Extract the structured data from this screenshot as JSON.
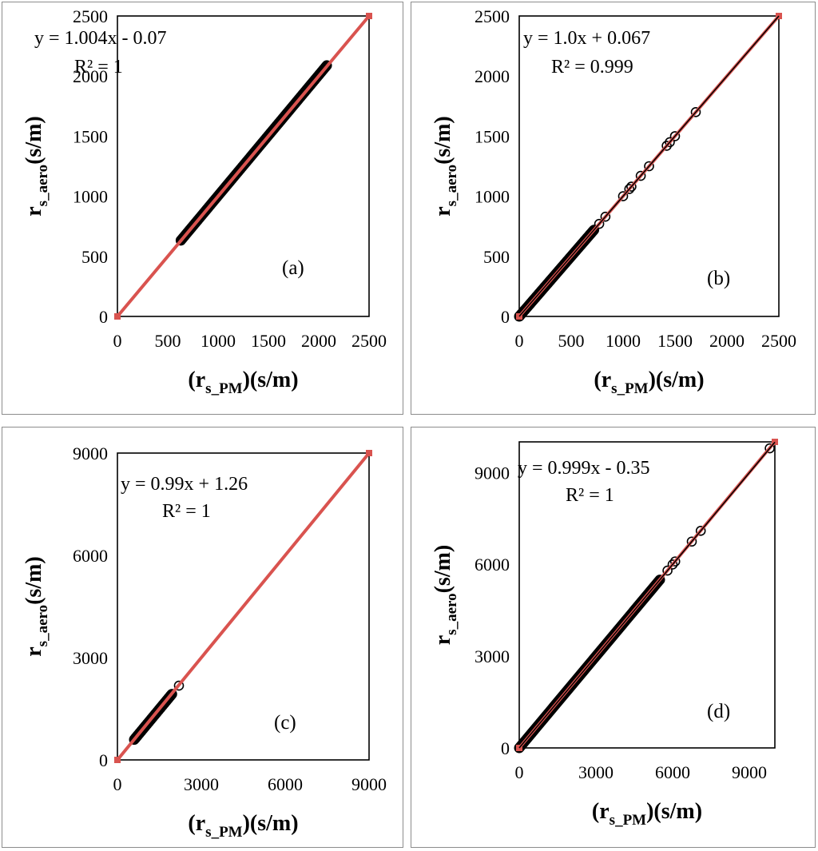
{
  "chart_data": [
    {
      "type": "scatter",
      "panel_label": "(a)",
      "equation": "y = 1.004x - 0.07",
      "r_squared": "R² = 1",
      "xlim": [
        0,
        2500
      ],
      "ylim": [
        0,
        2500
      ],
      "xticks": [
        "0",
        "500",
        "1000",
        "1500",
        "2000",
        "2500"
      ],
      "yticks": [
        "0",
        "500",
        "1000",
        "1500",
        "2000",
        "2500"
      ],
      "xlabel": {
        "main": "(r",
        "sub": "s_PM",
        "tail": ")(s/m)"
      },
      "ylabel": {
        "main": "r",
        "sub": "s_aero",
        "tail": "(s/m)"
      },
      "point_range": [
        630,
        2080
      ],
      "outliers": [],
      "line_colors": [
        "#d9534f"
      ],
      "trendline": {
        "slope": 1.004,
        "intercept": -0.07
      }
    },
    {
      "type": "scatter",
      "panel_label": "(b)",
      "equation": "y = 1.0x + 0.067",
      "r_squared": "R² = 0.999",
      "xlim": [
        0,
        2500
      ],
      "ylim": [
        0,
        2500
      ],
      "xticks": [
        "0",
        "500",
        "1000",
        "1500",
        "2000",
        "2500"
      ],
      "yticks": [
        "0",
        "500",
        "1000",
        "1500",
        "2000",
        "2500"
      ],
      "xlabel": {
        "main": "(r",
        "sub": "s_PM",
        "tail": ")(s/m)"
      },
      "ylabel": {
        "main": "r",
        "sub": "s_aero",
        "tail": "(s/m)"
      },
      "point_range": [
        0,
        720
      ],
      "outliers": [
        770,
        830,
        1000,
        1060,
        1080,
        1170,
        1250,
        1420,
        1450,
        1500,
        1700
      ],
      "line_colors": [
        "#d9534f",
        "#000000"
      ],
      "trendline": {
        "slope": 1.0,
        "intercept": 0.067
      }
    },
    {
      "type": "scatter",
      "panel_label": "(c)",
      "equation": "y = 0.99x + 1.26",
      "r_squared": "R² = 1",
      "xlim": [
        0,
        9000
      ],
      "ylim": [
        0,
        9000
      ],
      "xticks": [
        "0",
        "3000",
        "6000",
        "9000"
      ],
      "yticks": [
        "0",
        "3000",
        "6000",
        "9000"
      ],
      "xlabel": {
        "main": "(r",
        "sub": "s_PM",
        "tail": ")(s/m)"
      },
      "ylabel": {
        "main": "r",
        "sub": "s_aero",
        "tail": "(s/m)"
      },
      "point_range": [
        600,
        1950
      ],
      "outliers": [
        2200
      ],
      "line_colors": [
        "#d9534f"
      ],
      "trendline": {
        "slope": 0.99,
        "intercept": 1.26
      }
    },
    {
      "type": "scatter",
      "panel_label": "(d)",
      "equation": "y = 0.999x - 0.35",
      "r_squared": "R² = 1",
      "xlim": [
        0,
        10000
      ],
      "ylim": [
        0,
        10000
      ],
      "xticks": [
        "0",
        "3000",
        "6000",
        "9000"
      ],
      "yticks": [
        "0",
        "3000",
        "6000",
        "9000"
      ],
      "xlabel": {
        "main": "(r",
        "sub": "s_PM",
        "tail": ")(s/m)"
      },
      "ylabel": {
        "main": "r",
        "sub": "s_aero",
        "tail": "(s/m)"
      },
      "point_range": [
        0,
        5500
      ],
      "outliers": [
        5800,
        6000,
        6100,
        6750,
        7100,
        9800
      ],
      "line_colors": [
        "#d9534f",
        "#000000"
      ],
      "trendline": {
        "slope": 0.999,
        "intercept": -0.35
      }
    }
  ]
}
